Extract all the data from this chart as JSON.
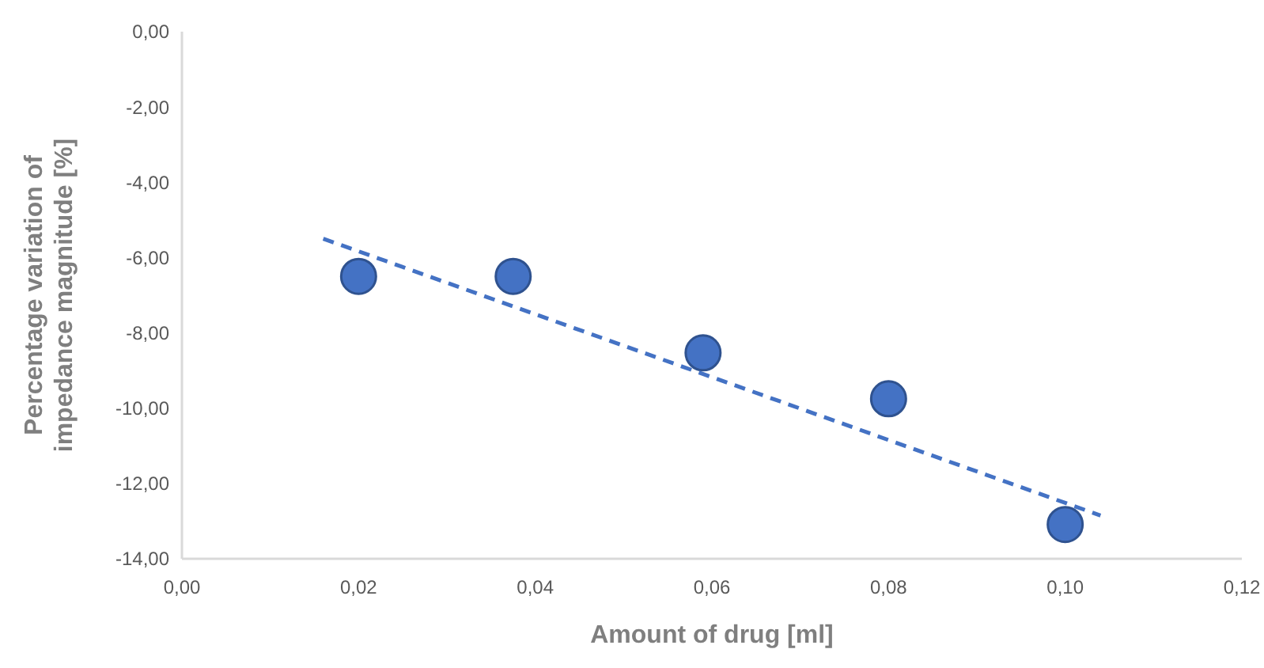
{
  "chart_data": {
    "type": "scatter",
    "xlabel": "Amount of drug [ml]",
    "ylabel": "Percentage variation of impedance magnitude [%]",
    "marker": "circle",
    "grid": false,
    "xlim": [
      0,
      0.12
    ],
    "xticks": [
      {
        "value": 0,
        "label": "0,00"
      },
      {
        "value": 0.02,
        "label": "0,02"
      },
      {
        "value": 0.04,
        "label": "0,04"
      },
      {
        "value": 0.06,
        "label": "0,06"
      },
      {
        "value": 0.08,
        "label": "0,08"
      },
      {
        "value": 0.1,
        "label": "0,10"
      },
      {
        "value": 0.12,
        "label": "0,12"
      }
    ],
    "ylim": [
      -14,
      0
    ],
    "yticks": [
      {
        "value": 0,
        "label": "0,00"
      },
      {
        "value": -2,
        "label": "-2,00"
      },
      {
        "value": -4,
        "label": "-4,00"
      },
      {
        "value": -6,
        "label": "-6,00"
      },
      {
        "value": -8,
        "label": "-8,00"
      },
      {
        "value": -10,
        "label": "-10,00"
      },
      {
        "value": -12,
        "label": "-12,00"
      },
      {
        "value": -14,
        "label": "-14,00"
      }
    ],
    "series": [
      {
        "color": "#4472c4",
        "x": [
          0.02,
          0.0375,
          0.059,
          0.08,
          0.1
        ],
        "values": [
          -6.5,
          -6.5,
          -8.53,
          -9.75,
          -13.09
        ]
      },
      {
        "type": "line",
        "color": "#4472c4",
        "line_style": "dashed",
        "marker": "none",
        "x": [
          0.016,
          0.104
        ],
        "values": [
          -5.5,
          -12.85
        ]
      }
    ]
  }
}
